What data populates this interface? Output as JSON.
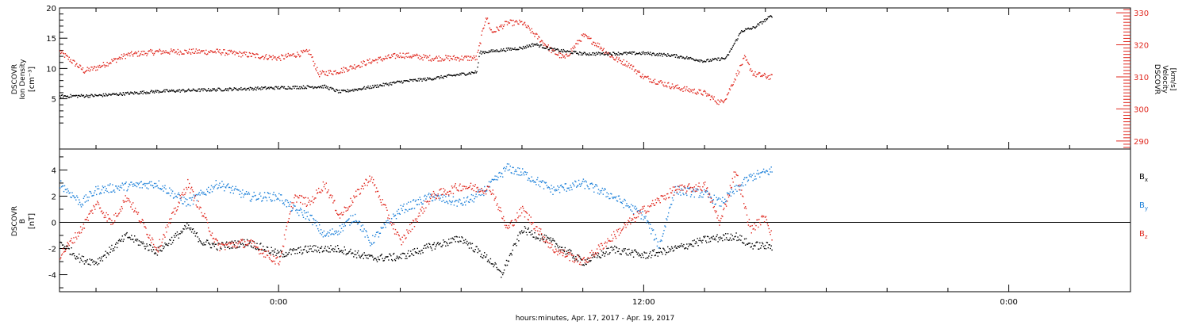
{
  "xaxis": {
    "label": "hours:minutes, Apr. 17, 2017 - Apr. 19, 2017",
    "ticks": [
      {
        "hour": 0,
        "label": "0:00"
      },
      {
        "hour": 12,
        "label": "12:00"
      },
      {
        "hour": 24,
        "label": "0:00"
      }
    ],
    "range_hours": [
      -7.2,
      28.0
    ],
    "minor_step_hours": 2
  },
  "chart_data": [
    {
      "type": "scatter",
      "panel": "top",
      "ylabel_left": [
        "DSCOVR",
        "Ion Density",
        "[cm⁻³]"
      ],
      "ylabel_right": [
        "DSCOVR",
        "Velocity",
        "[km/s]"
      ],
      "yleft": {
        "ticks": [
          5,
          10,
          15,
          20
        ],
        "ylim": [
          -3.3,
          20
        ]
      },
      "yright": {
        "ticks": [
          290,
          300,
          310,
          320,
          330
        ],
        "ylim": [
          287.5,
          331.5
        ]
      },
      "data_end_hour": 16.2,
      "series": [
        {
          "name": "Ion Density",
          "axis": "left",
          "color": "#000000",
          "x": [
            -7.2,
            -6,
            -4,
            -2,
            0,
            1.5,
            2,
            3,
            4,
            5,
            6.5,
            6.6,
            8,
            8.4,
            9,
            10,
            12,
            13,
            14,
            14.7,
            15.2,
            15.6,
            16.2
          ],
          "y": [
            5.5,
            5.6,
            6.3,
            6.6,
            6.9,
            7.1,
            6.2,
            7.0,
            7.9,
            8.4,
            9.5,
            12.7,
            13.5,
            14.1,
            13.2,
            12.5,
            12.6,
            12.2,
            11.3,
            11.8,
            16.3,
            16.8,
            18.8
          ]
        },
        {
          "name": "Velocity",
          "axis": "right",
          "color": "#e0281f",
          "x": [
            -7.2,
            -6.8,
            -6.4,
            -6,
            -5,
            -4,
            -2,
            -1,
            0,
            1,
            1.3,
            2,
            3,
            4,
            5,
            6,
            6.5,
            6.8,
            7,
            7.5,
            8,
            9,
            9.4,
            10,
            10.5,
            11,
            11.5,
            12,
            13,
            14,
            14.5,
            14.7,
            15,
            15.3,
            15.6,
            16.2
          ],
          "y": [
            318,
            315,
            312,
            313,
            317,
            318,
            318,
            317,
            316,
            318,
            311,
            312,
            315,
            317,
            316,
            316,
            316,
            329,
            324,
            327,
            327,
            318,
            316,
            323,
            320,
            316,
            314,
            310,
            307,
            305,
            302,
            304,
            310,
            316,
            311,
            310
          ]
        }
      ]
    },
    {
      "type": "scatter",
      "panel": "bottom",
      "ylabel_left": [
        "DSCOVR",
        "B",
        "[nT]"
      ],
      "yleft": {
        "ticks": [
          -4,
          -2,
          0,
          2,
          4
        ],
        "ylim": [
          -5.3,
          5.6
        ]
      },
      "zero_line": true,
      "legend": [
        {
          "key": "Bx",
          "base": "B",
          "sub": "x",
          "color": "#000000"
        },
        {
          "key": "By",
          "base": "B",
          "sub": "y",
          "color": "#1a7fd9"
        },
        {
          "key": "Bz",
          "base": "B",
          "sub": "z",
          "color": "#e0281f"
        }
      ],
      "data_end_hour": 16.2,
      "series": [
        {
          "name": "Bx",
          "color": "#000000",
          "x": [
            -7.2,
            -6.5,
            -6,
            -5,
            -4,
            -3,
            -2.5,
            -2,
            -1,
            0,
            1,
            2,
            3,
            4,
            5,
            6,
            7,
            7.3,
            8,
            9,
            10,
            11,
            12,
            13,
            14,
            15,
            15.5,
            16.2
          ],
          "y": [
            -1.5,
            -2.8,
            -3.0,
            -1.0,
            -2.2,
            -0.3,
            -1.5,
            -1.8,
            -1.5,
            -2.4,
            -2.0,
            -2.0,
            -2.7,
            -2.6,
            -1.8,
            -1.2,
            -3.0,
            -4.0,
            -0.5,
            -1.5,
            -3.0,
            -2.0,
            -2.5,
            -2.0,
            -1.3,
            -1.0,
            -1.7,
            -1.8
          ]
        },
        {
          "name": "By",
          "color": "#1a7fd9",
          "x": [
            -7.2,
            -6.5,
            -6,
            -5,
            -4,
            -3,
            -2,
            -1,
            0,
            0.5,
            1,
            1.5,
            2,
            2.5,
            3,
            4,
            5,
            6,
            6.5,
            7,
            7.5,
            8,
            9,
            10,
            10.5,
            11,
            12,
            12.5,
            13,
            14,
            14.5,
            15,
            15.5,
            16.2
          ],
          "y": [
            3.0,
            1.5,
            2.5,
            2.8,
            3.0,
            1.5,
            3.0,
            2.0,
            2.0,
            1.0,
            0.5,
            -1.0,
            -0.5,
            0.5,
            -1.5,
            1.0,
            2.0,
            1.5,
            2.0,
            3.0,
            4.2,
            3.8,
            2.5,
            3.0,
            2.5,
            2.0,
            0.5,
            -1.8,
            2.5,
            2.2,
            1.5,
            2.5,
            3.5,
            4.0
          ]
        },
        {
          "name": "Bz",
          "color": "#e0281f",
          "x": [
            -7.2,
            -6.5,
            -6,
            -5.5,
            -5,
            -4,
            -3,
            -2,
            -1,
            0,
            0.5,
            1,
            1.5,
            2,
            3,
            4,
            5,
            6,
            7,
            7.5,
            8,
            9,
            10,
            11,
            12,
            13,
            14,
            14.5,
            15,
            15.5,
            16,
            16.2
          ],
          "y": [
            -2.5,
            -0.5,
            1.5,
            0.0,
            2.0,
            -2.0,
            3.0,
            -1.8,
            -1.5,
            -3.0,
            2.0,
            1.5,
            3.0,
            0.5,
            3.5,
            -1.5,
            2.0,
            2.8,
            2.5,
            -0.5,
            1.0,
            -2.0,
            -3.0,
            -1.0,
            1.0,
            2.5,
            2.8,
            0.0,
            4.0,
            -0.5,
            0.5,
            -1.0
          ]
        }
      ]
    }
  ]
}
